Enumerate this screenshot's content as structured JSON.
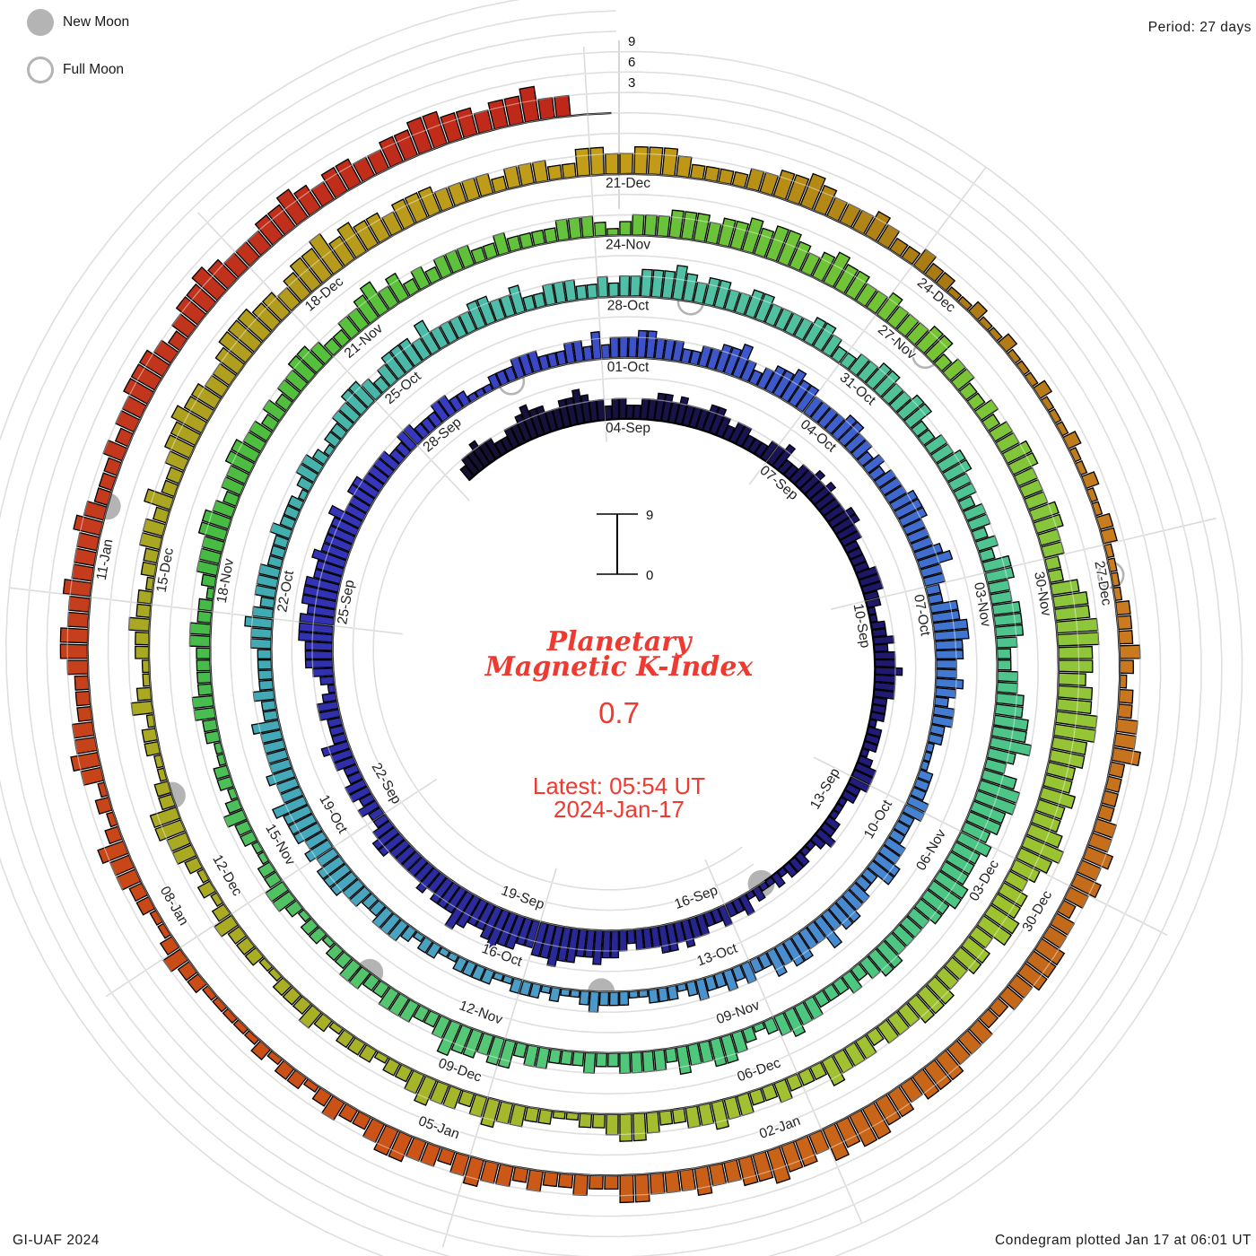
{
  "legend": {
    "new_moon": "New Moon",
    "full_moon": "Full Moon"
  },
  "header": {
    "period": "Period: 27 days"
  },
  "footer": {
    "left": "GI-UAF 2024",
    "right": "Condegram plotted Jan 17 at 06:01 UT"
  },
  "center": {
    "title_line1": "Planetary",
    "title_line2": "Magnetic K-Index",
    "current_k": "0.7",
    "latest_line1": "Latest: 05:54 UT",
    "latest_line2": "2024-Jan-17",
    "scale_top": "9",
    "scale_bottom": "0"
  },
  "chart_data": {
    "type": "bar",
    "subtype": "spiral-condegram",
    "title": "Planetary Magnetic K-Index",
    "period_days": 27,
    "bars_per_day": 8,
    "hours_per_bar": 3,
    "start_date": "2023-09-01",
    "end_label": "2024-Jan-17",
    "klim": [
      0,
      9
    ],
    "k_tick_labels": [
      "3",
      "6",
      "9"
    ],
    "k_values": "233433223345443344543323322334434333443233222334223343433344332222333221122323343332221222123332211122321122212112132232233434433323445445565544556544564443433333443223233223342223321234445554555445444453344333322332223322111222333222332423334433322334453234454433334433232333444333453322445544334323322111222332223344223344353344342232322321222112223211212221122221122123332233444343444533433334223222233432333222322212332122334432344435333344334223332232334445434433443333443223344334422334433233232443344432233445564356655454445544333344323222334321234433423333223222332443445322333223322122123322112232122112233222233221233344323344332323344322334534232333223222233321233344434454554345443343334423322323344333443322455665545566554454456543445534433444333233342223223343322344322112233432334322122212322211222321212334422112213211223221223324223445443345554434556454434443333233322443344432222334454333432232211211211121112112112211112223212233422223343432334443322333444344554534454433433344223223233432334432232122121111122321122334212134332223443343334322232334443234454333445434433445544344533",
    "color_stops": [
      [
        -3,
        "#14102e"
      ],
      [
        3,
        "#1a1458"
      ],
      [
        9,
        "#221c7e"
      ],
      [
        15,
        "#2a2a9a"
      ],
      [
        21,
        "#3232b4"
      ],
      [
        24,
        "#3638c0"
      ],
      [
        27,
        "#3c50ca"
      ],
      [
        30,
        "#3e5ecd"
      ],
      [
        33,
        "#4173d0"
      ],
      [
        36,
        "#4583d1"
      ],
      [
        39,
        "#4a90cf"
      ],
      [
        42,
        "#4b9fc6"
      ],
      [
        45,
        "#45a8bc"
      ],
      [
        48,
        "#40abb2"
      ],
      [
        51,
        "#49b8a8"
      ],
      [
        54,
        "#50bfa8"
      ],
      [
        57,
        "#4fc29a"
      ],
      [
        60,
        "#4ec48e"
      ],
      [
        63,
        "#4cc684"
      ],
      [
        66,
        "#4bc77d"
      ],
      [
        69,
        "#55c876"
      ],
      [
        72,
        "#4fc160"
      ],
      [
        75,
        "#44ba44"
      ],
      [
        78,
        "#57c13a"
      ],
      [
        81,
        "#68c23c"
      ],
      [
        84,
        "#72c433"
      ],
      [
        87,
        "#8cc63c"
      ],
      [
        90,
        "#9cc32e"
      ],
      [
        93,
        "#a2c132"
      ],
      [
        96,
        "#a5b62b"
      ],
      [
        99,
        "#aaaa22"
      ],
      [
        102,
        "#a8a822"
      ],
      [
        105,
        "#b49a1c"
      ],
      [
        108,
        "#c49e18"
      ],
      [
        111,
        "#a87a14"
      ],
      [
        114,
        "#cc7d20"
      ],
      [
        117,
        "#c36a1a"
      ],
      [
        120,
        "#c96418"
      ],
      [
        123,
        "#cc5517"
      ],
      [
        126,
        "#c94a16"
      ],
      [
        129,
        "#c43c1d"
      ],
      [
        132,
        "#c0301c"
      ],
      [
        136,
        "#bf2418"
      ]
    ],
    "ring_labels": [
      [
        0,
        0,
        "04-Sep"
      ],
      [
        0,
        1,
        "01-Oct"
      ],
      [
        0,
        2,
        "28-Oct"
      ],
      [
        0,
        3,
        "24-Nov"
      ],
      [
        0,
        4,
        "21-Dec"
      ],
      [
        1,
        0,
        "07-Sep"
      ],
      [
        1,
        1,
        "04-Oct"
      ],
      [
        1,
        2,
        "31-Oct"
      ],
      [
        1,
        3,
        "27-Nov"
      ],
      [
        1,
        4,
        "24-Dec"
      ],
      [
        2,
        0,
        "10-Sep"
      ],
      [
        2,
        1,
        "07-Oct"
      ],
      [
        2,
        2,
        "03-Nov"
      ],
      [
        2,
        3,
        "30-Nov"
      ],
      [
        2,
        4,
        "27-Dec"
      ],
      [
        3,
        0,
        "13-Sep"
      ],
      [
        3,
        1,
        "10-Oct"
      ],
      [
        3,
        2,
        "06-Nov"
      ],
      [
        3,
        3,
        "03-Dec"
      ],
      [
        3,
        4,
        "30-Dec"
      ],
      [
        4,
        0,
        "16-Sep"
      ],
      [
        4,
        1,
        "13-Oct"
      ],
      [
        4,
        2,
        "09-Nov"
      ],
      [
        4,
        3,
        "06-Dec"
      ],
      [
        4,
        4,
        "02-Jan"
      ],
      [
        5,
        0,
        "19-Sep"
      ],
      [
        5,
        1,
        "16-Oct"
      ],
      [
        5,
        2,
        "12-Nov"
      ],
      [
        5,
        3,
        "09-Dec"
      ],
      [
        5,
        4,
        "05-Jan"
      ],
      [
        6,
        0,
        "22-Sep"
      ],
      [
        6,
        1,
        "19-Oct"
      ],
      [
        6,
        2,
        "15-Nov"
      ],
      [
        6,
        3,
        "12-Dec"
      ],
      [
        6,
        4,
        "08-Jan"
      ],
      [
        7,
        0,
        "25-Sep"
      ],
      [
        7,
        1,
        "22-Oct"
      ],
      [
        7,
        2,
        "18-Nov"
      ],
      [
        7,
        3,
        "15-Dec"
      ],
      [
        7,
        4,
        "11-Jan"
      ],
      [
        8,
        0,
        "28-Sep"
      ],
      [
        8,
        1,
        "25-Oct"
      ],
      [
        8,
        2,
        "21-Nov"
      ],
      [
        8,
        3,
        "18-Dec"
      ]
    ],
    "moons": [
      {
        "type": "new",
        "date": "2023-09-15",
        "t": 11.07
      },
      {
        "type": "new",
        "date": "2023-10-14",
        "t": 40.73
      },
      {
        "type": "new",
        "date": "2023-11-13",
        "t": 70.39
      },
      {
        "type": "new",
        "date": "2023-12-12",
        "t": 99.98
      },
      {
        "type": "new",
        "date": "2024-01-11",
        "t": 129.5
      },
      {
        "type": "full",
        "date": "2023-09-29",
        "t": 25.41
      },
      {
        "type": "full",
        "date": "2023-10-28",
        "t": 54.85
      },
      {
        "type": "full",
        "date": "2023-11-27",
        "t": 84.39
      },
      {
        "type": "full",
        "date": "2023-12-27",
        "t": 114.02
      }
    ]
  }
}
